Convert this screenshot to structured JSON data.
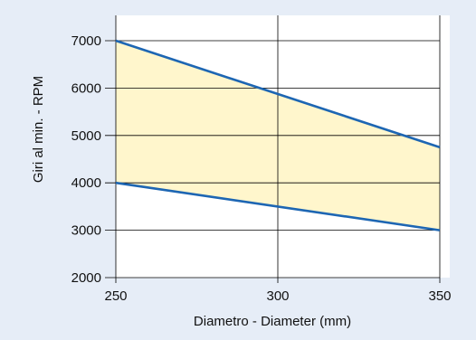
{
  "chart_data": {
    "type": "area",
    "title": "",
    "xlabel": "Diametro - Diameter (mm)",
    "ylabel": "Giri al min. - RPM",
    "x": [
      250,
      350
    ],
    "xlim": [
      250,
      350
    ],
    "ylim": [
      2000,
      7000
    ],
    "xticks": [
      250,
      300,
      350
    ],
    "yticks": [
      2000,
      3000,
      4000,
      5000,
      6000,
      7000
    ],
    "xtick_labels": [
      "250",
      "300",
      "350"
    ],
    "ytick_labels": [
      "2000",
      "3000",
      "4000",
      "5000",
      "6000",
      "7000"
    ],
    "series": [
      {
        "values": [
          7000,
          4750
        ]
      },
      {
        "values": [
          4000,
          3000
        ]
      }
    ],
    "band_fill": "between series",
    "grid": true,
    "colors": {
      "background": "#e6edf7",
      "plot_area": "#ffffff",
      "band": "#fff6cc",
      "lines": "#1d66b3",
      "grid": "#000000"
    }
  }
}
